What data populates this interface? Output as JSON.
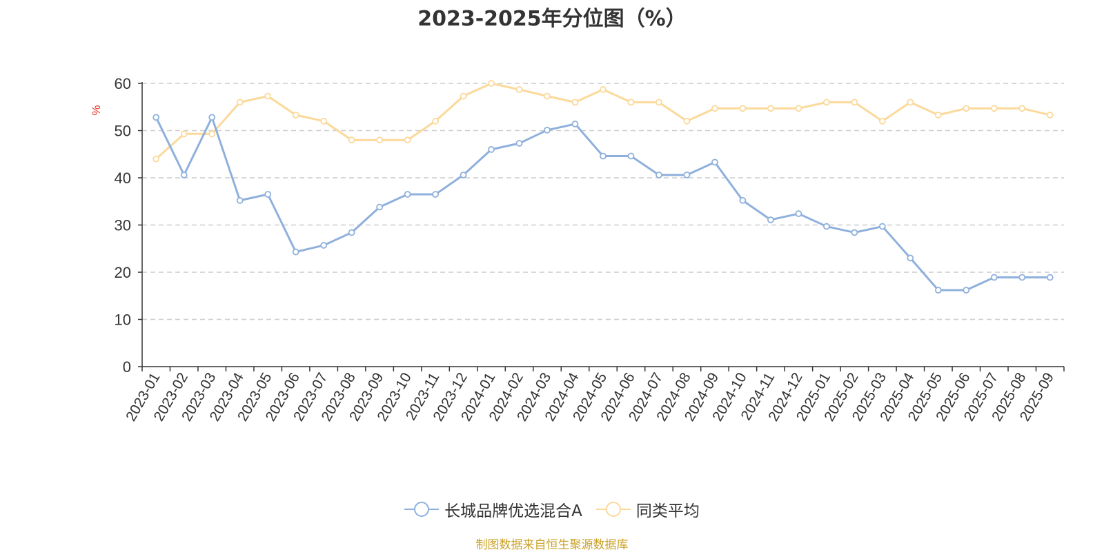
{
  "chart_data": {
    "type": "line",
    "title": "2023-2025年分位图（%）",
    "ylabel": "%",
    "xlabel": "",
    "ylim": [
      0,
      60
    ],
    "yticks": [
      0,
      10,
      20,
      30,
      40,
      50,
      60
    ],
    "grid": true,
    "legend_position": "bottom",
    "categories": [
      "2023-01",
      "2023-02",
      "2023-03",
      "2023-04",
      "2023-05",
      "2023-06",
      "2023-07",
      "2023-08",
      "2023-09",
      "2023-10",
      "2023-11",
      "2023-12",
      "2024-01",
      "2024-02",
      "2024-03",
      "2024-04",
      "2024-05",
      "2024-06",
      "2024-07",
      "2024-08",
      "2024-09",
      "2024-10",
      "2024-11",
      "2024-12",
      "2025-01",
      "2025-02",
      "2025-03",
      "2025-04",
      "2025-05",
      "2025-06",
      "2025-07",
      "2025-08",
      "2025-09"
    ],
    "series": [
      {
        "name": "长城品牌优选混合A",
        "color": "#8fb0dc",
        "values": [
          52.8,
          40.6,
          52.8,
          35.2,
          36.5,
          24.3,
          25.7,
          28.4,
          33.8,
          36.5,
          36.5,
          40.6,
          46.0,
          47.3,
          50.1,
          51.4,
          44.6,
          44.6,
          40.6,
          40.6,
          43.3,
          35.2,
          31.1,
          32.4,
          29.7,
          28.4,
          29.7,
          23.0,
          16.2,
          16.2,
          18.9,
          18.9,
          18.9
        ]
      },
      {
        "name": "同类平均",
        "color": "#fbd99a",
        "values": [
          44.0,
          49.3,
          49.3,
          56.0,
          57.3,
          53.3,
          52.0,
          48.0,
          48.0,
          48.0,
          52.0,
          57.3,
          60.0,
          58.7,
          57.3,
          56.0,
          58.7,
          56.0,
          56.0,
          52.0,
          54.7,
          54.7,
          54.7,
          54.7,
          56.0,
          56.0,
          52.0,
          56.0,
          53.3,
          54.7,
          54.7,
          54.7,
          53.3
        ]
      }
    ]
  },
  "source_note": "制图数据来自恒生聚源数据库"
}
